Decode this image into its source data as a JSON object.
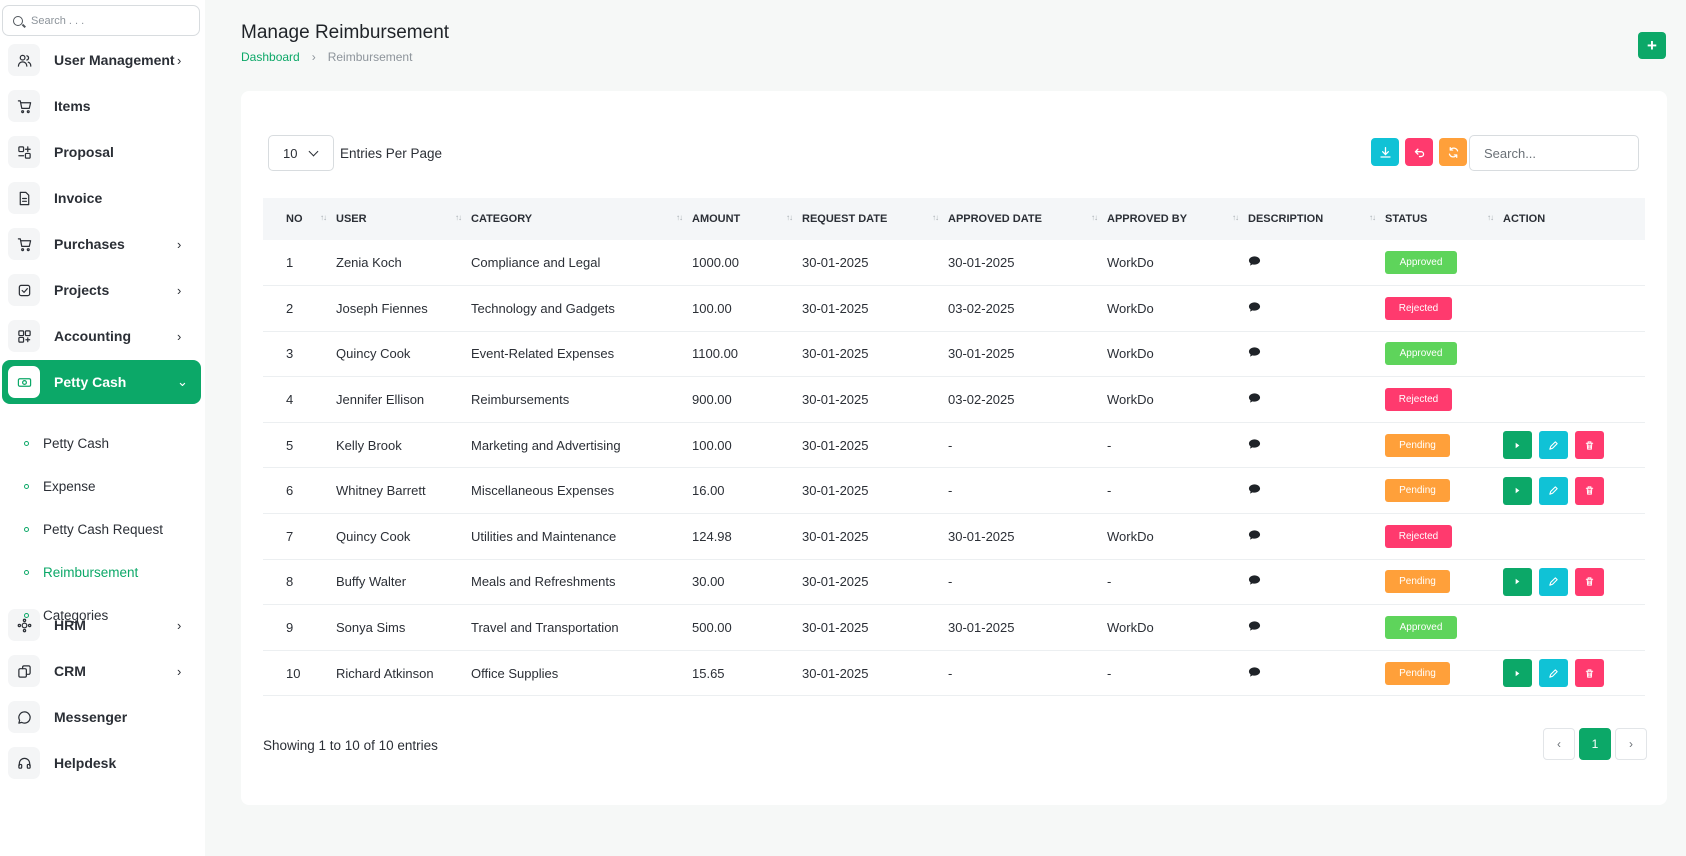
{
  "sidebar": {
    "search_placeholder": "Search . . .",
    "items": [
      {
        "label": "User Management",
        "icon": "users-icon",
        "chevron": "›"
      },
      {
        "label": "Items",
        "icon": "cart-icon",
        "chevron": ""
      },
      {
        "label": "Proposal",
        "icon": "proposal-icon",
        "chevron": ""
      },
      {
        "label": "Invoice",
        "icon": "invoice-icon",
        "chevron": ""
      },
      {
        "label": "Purchases",
        "icon": "purchases-icon",
        "chevron": "›"
      },
      {
        "label": "Projects",
        "icon": "projects-icon",
        "chevron": "›"
      },
      {
        "label": "Accounting",
        "icon": "accounting-icon",
        "chevron": "›"
      },
      {
        "label": "Petty Cash",
        "icon": "cash-icon",
        "chevron": "⌄"
      },
      {
        "label": "HRM",
        "icon": "hrm-icon",
        "chevron": "›"
      },
      {
        "label": "CRM",
        "icon": "crm-icon",
        "chevron": "›"
      },
      {
        "label": "Messenger",
        "icon": "messenger-icon",
        "chevron": ""
      },
      {
        "label": "Helpdesk",
        "icon": "helpdesk-icon",
        "chevron": ""
      }
    ],
    "sub_items": [
      {
        "label": "Petty Cash"
      },
      {
        "label": "Expense"
      },
      {
        "label": "Petty Cash Request"
      },
      {
        "label": "Reimbursement"
      },
      {
        "label": "Categories"
      }
    ]
  },
  "header": {
    "title": "Manage Reimbursement",
    "breadcrumb": [
      "Dashboard",
      "Reimbursement"
    ],
    "add_label": "+"
  },
  "toolbar": {
    "entries_value": "10",
    "entries_label": "Entries Per Page",
    "search_placeholder": "Search..."
  },
  "table": {
    "columns": [
      "NO",
      "USER",
      "CATEGORY",
      "AMOUNT",
      "REQUEST DATE",
      "APPROVED DATE",
      "APPROVED BY",
      "DESCRIPTION",
      "STATUS",
      "ACTION"
    ],
    "sort_glyph": "↑↓",
    "rows": [
      {
        "no": "1",
        "user": "Zenia Koch",
        "category": "Compliance and Legal",
        "amount": "1000.00",
        "request_date": "30-01-2025",
        "approved_date": "30-01-2025",
        "approved_by": "WorkDo",
        "status": "Approved"
      },
      {
        "no": "2",
        "user": "Joseph Fiennes",
        "category": "Technology and Gadgets",
        "amount": "100.00",
        "request_date": "30-01-2025",
        "approved_date": "03-02-2025",
        "approved_by": "WorkDo",
        "status": "Rejected"
      },
      {
        "no": "3",
        "user": "Quincy Cook",
        "category": "Event-Related Expenses",
        "amount": "1100.00",
        "request_date": "30-01-2025",
        "approved_date": "30-01-2025",
        "approved_by": "WorkDo",
        "status": "Approved"
      },
      {
        "no": "4",
        "user": "Jennifer Ellison",
        "category": "Reimbursements",
        "amount": "900.00",
        "request_date": "30-01-2025",
        "approved_date": "03-02-2025",
        "approved_by": "WorkDo",
        "status": "Rejected"
      },
      {
        "no": "5",
        "user": "Kelly Brook",
        "category": "Marketing and Advertising",
        "amount": "100.00",
        "request_date": "30-01-2025",
        "approved_date": "-",
        "approved_by": "-",
        "status": "Pending"
      },
      {
        "no": "6",
        "user": "Whitney Barrett",
        "category": "Miscellaneous Expenses",
        "amount": "16.00",
        "request_date": "30-01-2025",
        "approved_date": "-",
        "approved_by": "-",
        "status": "Pending"
      },
      {
        "no": "7",
        "user": "Quincy Cook",
        "category": "Utilities and Maintenance",
        "amount": "124.98",
        "request_date": "30-01-2025",
        "approved_date": "30-01-2025",
        "approved_by": "WorkDo",
        "status": "Rejected"
      },
      {
        "no": "8",
        "user": "Buffy Walter",
        "category": "Meals and Refreshments",
        "amount": "30.00",
        "request_date": "30-01-2025",
        "approved_date": "-",
        "approved_by": "-",
        "status": "Pending"
      },
      {
        "no": "9",
        "user": "Sonya Sims",
        "category": "Travel and Transportation",
        "amount": "500.00",
        "request_date": "30-01-2025",
        "approved_date": "30-01-2025",
        "approved_by": "WorkDo",
        "status": "Approved"
      },
      {
        "no": "10",
        "user": "Richard Atkinson",
        "category": "Office Supplies",
        "amount": "15.65",
        "request_date": "30-01-2025",
        "approved_date": "-",
        "approved_by": "-",
        "status": "Pending"
      }
    ]
  },
  "footer": {
    "showing": "Showing 1 to 10 of 10 entries",
    "prev": "‹",
    "current_page": "1",
    "next": "›"
  },
  "colors": {
    "accent": "#0ca868",
    "approved": "#5ed45b",
    "rejected": "#ff3a6e",
    "pending": "#ffa03a",
    "info": "#10c2d6"
  }
}
